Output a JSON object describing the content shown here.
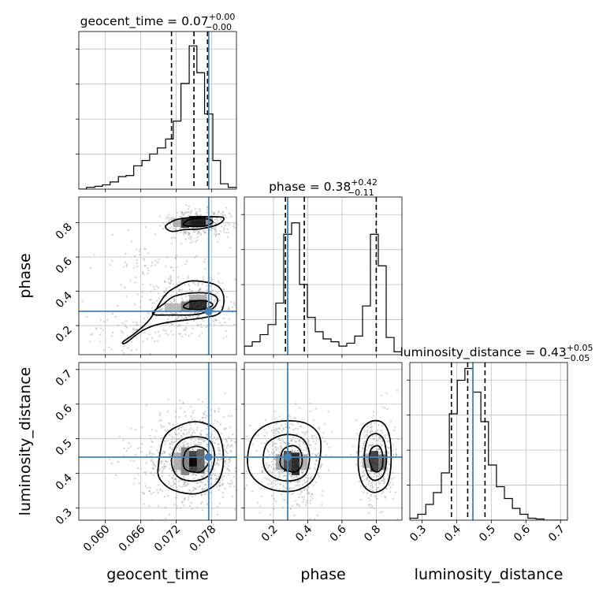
{
  "chart_data": {
    "type": "corner",
    "parameters": [
      "geocent_time",
      "phase",
      "luminosity_distance"
    ],
    "axis_labels": [
      "geocent_time",
      "phase",
      "luminosity_distance"
    ],
    "truths": [
      0.0775,
      0.283,
      0.447
    ],
    "colors": {
      "truth": "#4682b4",
      "hist": "#000000",
      "grid": "#c0c0c0",
      "points": "#9a9a9a"
    },
    "titles": [
      {
        "name": "geocent_time",
        "value": "0.07",
        "plus": "+0.00",
        "minus": "−0.00"
      },
      {
        "name": "phase",
        "value": "0.38",
        "plus": "+0.42",
        "minus": "−0.11"
      },
      {
        "name": "luminosity_distance",
        "value": "0.43",
        "plus": "+0.05",
        "minus": "−0.05"
      }
    ],
    "ranges": {
      "geocent_time": [
        0.0555,
        0.0822
      ],
      "phase": [
        0.03,
        0.95
      ],
      "luminosity_distance": [
        0.265,
        0.72
      ]
    },
    "ticks": {
      "geocent_time": [
        0.06,
        0.066,
        0.072,
        0.078
      ],
      "geocent_time_labels": [
        "0.060",
        "0.066",
        "0.072",
        "0.078"
      ],
      "phase": [
        0.2,
        0.4,
        0.6,
        0.8
      ],
      "phase_labels": [
        "0.2",
        "0.4",
        "0.6",
        "0.8"
      ],
      "phase_col_labels": [
        "0.2",
        "0.4",
        "0.6",
        "0.8"
      ],
      "luminosity_distance": [
        0.3,
        0.4,
        0.5,
        0.6,
        0.7
      ],
      "luminosity_distance_labels": [
        "0.3",
        "0.4",
        "0.5",
        "0.6",
        "0.7"
      ]
    },
    "hist_1d": {
      "geocent_time": {
        "quantiles": [
          0.0712,
          0.075,
          0.0773
        ],
        "bins": [
          [
            0.0555,
            0.0568,
            0.0
          ],
          [
            0.0568,
            0.0582,
            0.5
          ],
          [
            0.0582,
            0.0595,
            0.8
          ],
          [
            0.0595,
            0.0608,
            1.2
          ],
          [
            0.0608,
            0.0622,
            2.0
          ],
          [
            0.0622,
            0.0635,
            3.5
          ],
          [
            0.0635,
            0.0648,
            3.8
          ],
          [
            0.0648,
            0.0662,
            6.5
          ],
          [
            0.0662,
            0.0675,
            8.0
          ],
          [
            0.0675,
            0.0688,
            9.8
          ],
          [
            0.0688,
            0.0702,
            11.5
          ],
          [
            0.0702,
            0.0715,
            14.0
          ],
          [
            0.0715,
            0.0728,
            19.0
          ],
          [
            0.0728,
            0.0742,
            29.5
          ],
          [
            0.0742,
            0.0755,
            40.0
          ],
          [
            0.0755,
            0.0768,
            32.5
          ],
          [
            0.0768,
            0.0782,
            21.0
          ],
          [
            0.0782,
            0.0795,
            8.0
          ],
          [
            0.0795,
            0.0808,
            1.5
          ],
          [
            0.0808,
            0.0822,
            0.5
          ]
        ],
        "ymax": 44
      },
      "phase": {
        "quantiles": [
          0.27,
          0.38,
          0.8
        ],
        "bins": [
          [
            0.03,
            0.076,
            3.0
          ],
          [
            0.076,
            0.122,
            4.5
          ],
          [
            0.122,
            0.168,
            7.0
          ],
          [
            0.168,
            0.214,
            10.5
          ],
          [
            0.214,
            0.26,
            18.0
          ],
          [
            0.26,
            0.306,
            42.0
          ],
          [
            0.306,
            0.352,
            46.0
          ],
          [
            0.352,
            0.398,
            24.5
          ],
          [
            0.398,
            0.444,
            13.0
          ],
          [
            0.444,
            0.49,
            8.0
          ],
          [
            0.49,
            0.536,
            5.5
          ],
          [
            0.536,
            0.582,
            4.5
          ],
          [
            0.582,
            0.628,
            3.0
          ],
          [
            0.628,
            0.674,
            4.0
          ],
          [
            0.674,
            0.72,
            6.5
          ],
          [
            0.72,
            0.766,
            17.0
          ],
          [
            0.766,
            0.812,
            42.0
          ],
          [
            0.812,
            0.858,
            31.0
          ],
          [
            0.858,
            0.904,
            6.0
          ],
          [
            0.904,
            0.95,
            1.0
          ]
        ],
        "ymax": 55
      },
      "luminosity_distance": {
        "quantiles": [
          0.385,
          0.432,
          0.482
        ],
        "bins": [
          [
            0.265,
            0.288,
            0.5
          ],
          [
            0.288,
            0.311,
            1.5
          ],
          [
            0.311,
            0.333,
            4.0
          ],
          [
            0.333,
            0.356,
            7.0
          ],
          [
            0.356,
            0.379,
            12.0
          ],
          [
            0.379,
            0.402,
            27.0
          ],
          [
            0.402,
            0.424,
            35.5
          ],
          [
            0.424,
            0.447,
            38.5
          ],
          [
            0.447,
            0.47,
            32.5
          ],
          [
            0.47,
            0.492,
            25.0
          ],
          [
            0.492,
            0.515,
            14.0
          ],
          [
            0.515,
            0.538,
            8.5
          ],
          [
            0.538,
            0.561,
            5.5
          ],
          [
            0.561,
            0.583,
            3.0
          ],
          [
            0.583,
            0.606,
            1.5
          ],
          [
            0.606,
            0.629,
            0.5
          ],
          [
            0.629,
            0.652,
            0.3
          ],
          [
            0.652,
            0.72,
            0.0
          ]
        ],
        "ymax": 40
      }
    },
    "scatter_2d": {
      "geocent_time__phase": {
        "x": "geocent_time",
        "y": "phase",
        "seed": 11,
        "n": 900,
        "blobs": [
          {
            "cx": 0.0758,
            "cy": 0.8,
            "sx": 0.0022,
            "sy": 0.035,
            "w": 0.38
          },
          {
            "cx": 0.0745,
            "cy": 0.32,
            "sx": 0.003,
            "sy": 0.06,
            "w": 0.44
          },
          {
            "cx": 0.068,
            "cy": 0.58,
            "sx": 0.004,
            "sy": 0.09,
            "w": 0.1
          },
          {
            "cx": 0.065,
            "cy": 0.16,
            "sx": 0.004,
            "sy": 0.05,
            "w": 0.08
          }
        ]
      },
      "geocent_time__luminosity_distance": {
        "x": "geocent_time",
        "y": "luminosity_distance",
        "seed": 23,
        "n": 900,
        "blobs": [
          {
            "cx": 0.075,
            "cy": 0.435,
            "sx": 0.0038,
            "sy": 0.055,
            "w": 1.0
          }
        ]
      },
      "phase__luminosity_distance": {
        "x": "phase",
        "y": "luminosity_distance",
        "seed": 37,
        "n": 900,
        "blobs": [
          {
            "cx": 0.3,
            "cy": 0.435,
            "sx": 0.08,
            "sy": 0.05,
            "w": 0.62
          },
          {
            "cx": 0.8,
            "cy": 0.435,
            "sx": 0.045,
            "sy": 0.05,
            "w": 0.38
          }
        ]
      }
    },
    "density_cells": {
      "geocent_time__phase": [
        {
          "x0": 0.0728,
          "x1": 0.0742,
          "y0": 0.77,
          "y1": 0.83,
          "s": 0.9
        },
        {
          "x0": 0.0742,
          "x1": 0.077,
          "y0": 0.78,
          "y1": 0.84,
          "s": 1.0
        },
        {
          "x0": 0.0715,
          "x1": 0.0728,
          "y0": 0.775,
          "y1": 0.825,
          "s": 0.35
        },
        {
          "x0": 0.077,
          "x1": 0.0782,
          "y0": 0.78,
          "y1": 0.83,
          "s": 0.45
        },
        {
          "x0": 0.0728,
          "x1": 0.0742,
          "y0": 0.28,
          "y1": 0.34,
          "s": 0.55
        },
        {
          "x0": 0.0742,
          "x1": 0.0772,
          "y0": 0.29,
          "y1": 0.35,
          "s": 0.95
        },
        {
          "x0": 0.07,
          "x1": 0.0728,
          "y0": 0.285,
          "y1": 0.33,
          "s": 0.3
        },
        {
          "x0": 0.0742,
          "x1": 0.0772,
          "y0": 0.35,
          "y1": 0.38,
          "s": 0.35
        }
      ],
      "geocent_time__luminosity_distance": [
        {
          "x0": 0.0728,
          "x1": 0.0742,
          "y0": 0.395,
          "y1": 0.475,
          "s": 0.55
        },
        {
          "x0": 0.0742,
          "x1": 0.0755,
          "y0": 0.405,
          "y1": 0.465,
          "s": 0.85
        },
        {
          "x0": 0.0755,
          "x1": 0.0768,
          "y0": 0.4,
          "y1": 0.47,
          "s": 0.7
        },
        {
          "x0": 0.0715,
          "x1": 0.0728,
          "y0": 0.41,
          "y1": 0.46,
          "s": 0.35
        },
        {
          "x0": 0.0742,
          "x1": 0.0755,
          "y0": 0.42,
          "y1": 0.45,
          "s": 1.0
        }
      ],
      "phase__luminosity_distance": [
        {
          "x0": 0.26,
          "x1": 0.306,
          "y0": 0.405,
          "y1": 0.465,
          "s": 0.8
        },
        {
          "x0": 0.306,
          "x1": 0.352,
          "y0": 0.395,
          "y1": 0.46,
          "s": 0.95
        },
        {
          "x0": 0.214,
          "x1": 0.26,
          "y0": 0.41,
          "y1": 0.455,
          "s": 0.4
        },
        {
          "x0": 0.352,
          "x1": 0.398,
          "y0": 0.41,
          "y1": 0.455,
          "s": 0.35
        },
        {
          "x0": 0.766,
          "x1": 0.812,
          "y0": 0.405,
          "y1": 0.465,
          "s": 0.85
        },
        {
          "x0": 0.812,
          "x1": 0.858,
          "y0": 0.41,
          "y1": 0.455,
          "s": 0.6
        },
        {
          "x0": 0.72,
          "x1": 0.766,
          "y0": 0.415,
          "y1": 0.455,
          "s": 0.35
        }
      ]
    },
    "contours": {
      "geocent_time__phase": [
        [
          [
            0.0702,
            0.78
          ],
          [
            0.072,
            0.818
          ],
          [
            0.0748,
            0.832
          ],
          [
            0.0775,
            0.835
          ],
          [
            0.08,
            0.83
          ],
          [
            0.0792,
            0.792
          ],
          [
            0.0762,
            0.765
          ],
          [
            0.0735,
            0.76
          ],
          [
            0.0712,
            0.75
          ]
        ],
        [
          [
            0.0732,
            0.79
          ],
          [
            0.0744,
            0.82
          ],
          [
            0.077,
            0.824
          ],
          [
            0.0782,
            0.805
          ],
          [
            0.077,
            0.782
          ],
          [
            0.0748,
            0.778
          ]
        ],
        [
          [
            0.07,
            0.33
          ],
          [
            0.0715,
            0.368
          ],
          [
            0.074,
            0.388
          ],
          [
            0.0775,
            0.388
          ],
          [
            0.079,
            0.355
          ],
          [
            0.0782,
            0.3
          ],
          [
            0.0755,
            0.265
          ],
          [
            0.0715,
            0.262
          ],
          [
            0.068,
            0.268
          ]
        ],
        [
          [
            0.063,
            0.105
          ],
          [
            0.065,
            0.155
          ],
          [
            0.0675,
            0.235
          ],
          [
            0.07,
            0.372
          ],
          [
            0.072,
            0.425
          ],
          [
            0.0745,
            0.46
          ],
          [
            0.0785,
            0.44
          ],
          [
            0.08,
            0.375
          ],
          [
            0.0795,
            0.278
          ],
          [
            0.0765,
            0.245
          ],
          [
            0.07,
            0.215
          ],
          [
            0.0665,
            0.175
          ],
          [
            0.0635,
            0.1
          ]
        ],
        [
          [
            0.0732,
            0.31
          ],
          [
            0.0745,
            0.34
          ],
          [
            0.0768,
            0.345
          ],
          [
            0.0782,
            0.322
          ],
          [
            0.0768,
            0.296
          ],
          [
            0.0745,
            0.295
          ]
        ]
      ],
      "geocent_time__luminosity_distance": [
        [
          [
            0.069,
            0.425
          ],
          [
            0.07,
            0.505
          ],
          [
            0.0728,
            0.54
          ],
          [
            0.076,
            0.548
          ],
          [
            0.079,
            0.52
          ],
          [
            0.08,
            0.445
          ],
          [
            0.079,
            0.375
          ],
          [
            0.0755,
            0.342
          ],
          [
            0.0715,
            0.352
          ],
          [
            0.0692,
            0.385
          ]
        ],
        [
          [
            0.0712,
            0.435
          ],
          [
            0.0722,
            0.485
          ],
          [
            0.0745,
            0.505
          ],
          [
            0.0775,
            0.497
          ],
          [
            0.0785,
            0.45
          ],
          [
            0.0775,
            0.395
          ],
          [
            0.0748,
            0.378
          ],
          [
            0.0722,
            0.392
          ]
        ],
        [
          [
            0.0732,
            0.44
          ],
          [
            0.0738,
            0.468
          ],
          [
            0.0755,
            0.478
          ],
          [
            0.0772,
            0.465
          ],
          [
            0.0775,
            0.432
          ],
          [
            0.0762,
            0.405
          ],
          [
            0.0745,
            0.405
          ],
          [
            0.0734,
            0.415
          ]
        ]
      ],
      "phase__luminosity_distance": [
        [
          [
            0.05,
            0.45
          ],
          [
            0.08,
            0.505
          ],
          [
            0.16,
            0.54
          ],
          [
            0.28,
            0.552
          ],
          [
            0.4,
            0.542
          ],
          [
            0.47,
            0.505
          ],
          [
            0.47,
            0.44
          ],
          [
            0.43,
            0.382
          ],
          [
            0.34,
            0.352
          ],
          [
            0.22,
            0.35
          ],
          [
            0.12,
            0.37
          ],
          [
            0.06,
            0.405
          ]
        ],
        [
          [
            0.14,
            0.445
          ],
          [
            0.17,
            0.49
          ],
          [
            0.27,
            0.512
          ],
          [
            0.37,
            0.5
          ],
          [
            0.41,
            0.455
          ],
          [
            0.39,
            0.4
          ],
          [
            0.32,
            0.38
          ],
          [
            0.23,
            0.382
          ],
          [
            0.16,
            0.405
          ]
        ],
        [
          [
            0.24,
            0.44
          ],
          [
            0.26,
            0.47
          ],
          [
            0.32,
            0.48
          ],
          [
            0.36,
            0.462
          ],
          [
            0.365,
            0.425
          ],
          [
            0.33,
            0.405
          ],
          [
            0.28,
            0.408
          ],
          [
            0.245,
            0.42
          ]
        ],
        [
          [
            0.695,
            0.45
          ],
          [
            0.71,
            0.52
          ],
          [
            0.77,
            0.55
          ],
          [
            0.84,
            0.545
          ],
          [
            0.88,
            0.5
          ],
          [
            0.885,
            0.42
          ],
          [
            0.86,
            0.365
          ],
          [
            0.79,
            0.345
          ],
          [
            0.73,
            0.362
          ],
          [
            0.7,
            0.4
          ]
        ],
        [
          [
            0.73,
            0.445
          ],
          [
            0.75,
            0.5
          ],
          [
            0.8,
            0.515
          ],
          [
            0.845,
            0.495
          ],
          [
            0.86,
            0.44
          ],
          [
            0.84,
            0.395
          ],
          [
            0.79,
            0.38
          ],
          [
            0.75,
            0.398
          ]
        ],
        [
          [
            0.76,
            0.44
          ],
          [
            0.77,
            0.47
          ],
          [
            0.81,
            0.48
          ],
          [
            0.835,
            0.46
          ],
          [
            0.835,
            0.42
          ],
          [
            0.81,
            0.405
          ],
          [
            0.78,
            0.41
          ]
        ]
      ]
    }
  }
}
